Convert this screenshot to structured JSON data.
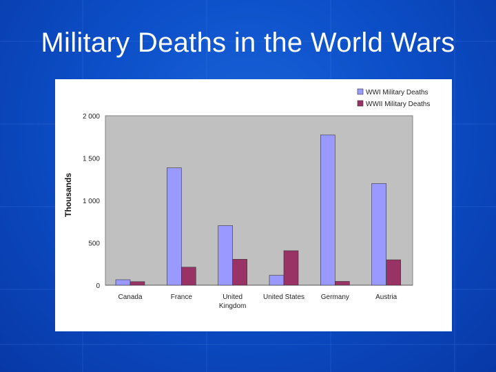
{
  "slide": {
    "title": "Military Deaths in the World Wars"
  },
  "colors": {
    "series1": "#9999ff",
    "series2": "#993366",
    "plot_bg": "#c0c0c0"
  },
  "chart_data": {
    "type": "bar",
    "title": "",
    "xlabel": "",
    "ylabel": "Thousands",
    "ylim": [
      0,
      2000
    ],
    "yticks": [
      0,
      500,
      1000,
      1500,
      2000
    ],
    "ytick_labels": [
      "0",
      "500",
      "1 000",
      "1 500",
      "2 000"
    ],
    "categories": [
      [
        "Canada"
      ],
      [
        "France"
      ],
      [
        "United",
        "Kingdom"
      ],
      [
        "United States"
      ],
      [
        "Germany"
      ],
      [
        "Austria"
      ]
    ],
    "series": [
      {
        "name": "WWI Military Deaths",
        "values": [
          65,
          1385,
          703,
          117,
          1773,
          1200
        ]
      },
      {
        "name": "WWII Military Deaths",
        "values": [
          42,
          213,
          306,
          407,
          45,
          300
        ]
      }
    ],
    "legend_position": "top-right",
    "grid": false
  }
}
